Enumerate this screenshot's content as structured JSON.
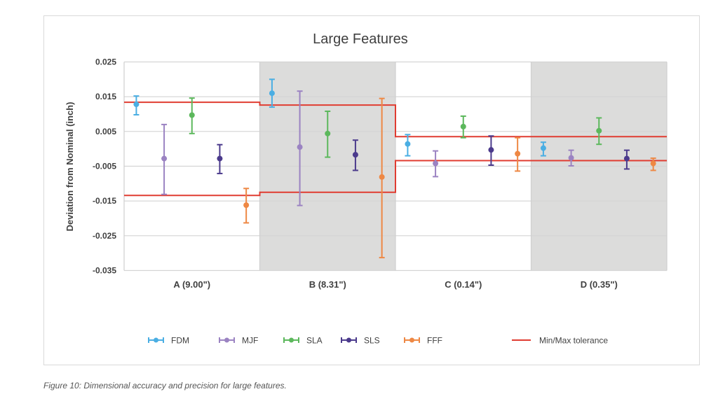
{
  "chart_data": {
    "type": "scatter",
    "title": "Large Features",
    "ylabel": "Deviation from Nominal  (inch)",
    "xlabel": "",
    "ylim": [
      -0.035,
      0.025
    ],
    "yticks": [
      0.025,
      0.015,
      0.005,
      -0.005,
      -0.015,
      -0.025,
      -0.035
    ],
    "ytick_labels": [
      "0.025",
      "0.015",
      "0.005",
      "-0.005",
      "-0.015",
      "-0.025",
      "-0.035"
    ],
    "grid": true,
    "categories": [
      "A (9.00\")",
      "B (8.31\")",
      "C (0.14\")",
      "D (0.35\")"
    ],
    "shaded_categories": [
      false,
      true,
      false,
      true
    ],
    "series": [
      {
        "name": "FDM",
        "color": "#4aaee3",
        "values": [
          0.0128,
          0.016,
          0.0014,
          0.0002
        ],
        "upper": [
          0.0152,
          0.02,
          0.0041,
          0.0019
        ],
        "lower": [
          0.0098,
          0.012,
          -0.002,
          -0.002
        ]
      },
      {
        "name": "MJF",
        "color": "#9b83c2",
        "values": [
          -0.0028,
          0.0005,
          -0.0042,
          -0.0026
        ],
        "upper": [
          0.007,
          0.0166,
          -0.0006,
          -0.0004
        ],
        "lower": [
          -0.0131,
          -0.0163,
          -0.008,
          -0.0049
        ]
      },
      {
        "name": "SLA",
        "color": "#5cb85c",
        "values": [
          0.0097,
          0.0044,
          0.0064,
          0.0052
        ],
        "upper": [
          0.0146,
          0.0108,
          0.0094,
          0.0089
        ],
        "lower": [
          0.0044,
          -0.0024,
          0.0032,
          0.0013
        ]
      },
      {
        "name": "SLS",
        "color": "#4b3a8c",
        "values": [
          -0.0028,
          -0.0017,
          -0.0003,
          -0.0028
        ],
        "upper": [
          0.0012,
          0.0025,
          0.0037,
          -0.0004
        ],
        "lower": [
          -0.0071,
          -0.0062,
          -0.0047,
          -0.0058
        ]
      },
      {
        "name": "FFF",
        "color": "#ee8844",
        "values": [
          -0.0162,
          -0.0081,
          -0.0014,
          -0.0042
        ],
        "upper": [
          -0.0114,
          0.0145,
          0.0032,
          -0.0027
        ],
        "lower": [
          -0.0213,
          -0.0313,
          -0.0064,
          -0.0062
        ]
      }
    ],
    "tolerance": {
      "name": "Min/Max tolerance",
      "color": "#e03c31",
      "max": [
        0.0134,
        0.0126,
        0.0035,
        0.0035
      ],
      "min": [
        -0.0134,
        -0.0125,
        -0.0034,
        -0.0034
      ]
    },
    "legend_position": "bottom"
  },
  "caption": "Figure 10: Dimensional accuracy and precision for large features."
}
